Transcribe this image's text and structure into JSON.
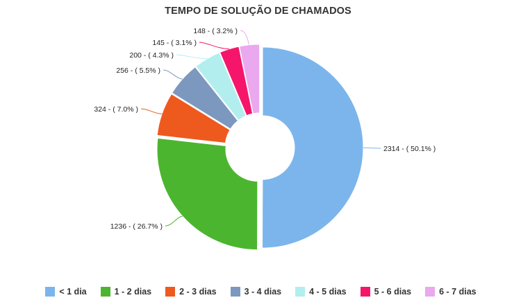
{
  "chart_data": {
    "type": "pie",
    "title": "TEMPO DE SOLUÇÃO DE CHAMADOS",
    "categories": [
      "< 1 dia",
      "1 - 2 dias",
      "2 - 3 dias",
      "3 - 4 dias",
      "4 - 5 dias",
      "5 - 6 dias",
      "6 - 7 dias"
    ],
    "values": [
      2314,
      1236,
      324,
      256,
      200,
      145,
      148
    ],
    "labels": [
      "2314 - ( 50.1% )",
      "1236 - ( 26.7% )",
      "324 - ( 7.0% )",
      "256 - ( 5.5% )",
      "200 - ( 4.3% )",
      "145 - ( 3.1% )",
      "148 - ( 3.2% )"
    ],
    "colors": [
      "#7cb5ec",
      "#4cb52f",
      "#ee5a1d",
      "#7c98bf",
      "#b2eeee",
      "#f5166b",
      "#eaa8ee"
    ],
    "donut": true,
    "legend_position": "bottom"
  }
}
